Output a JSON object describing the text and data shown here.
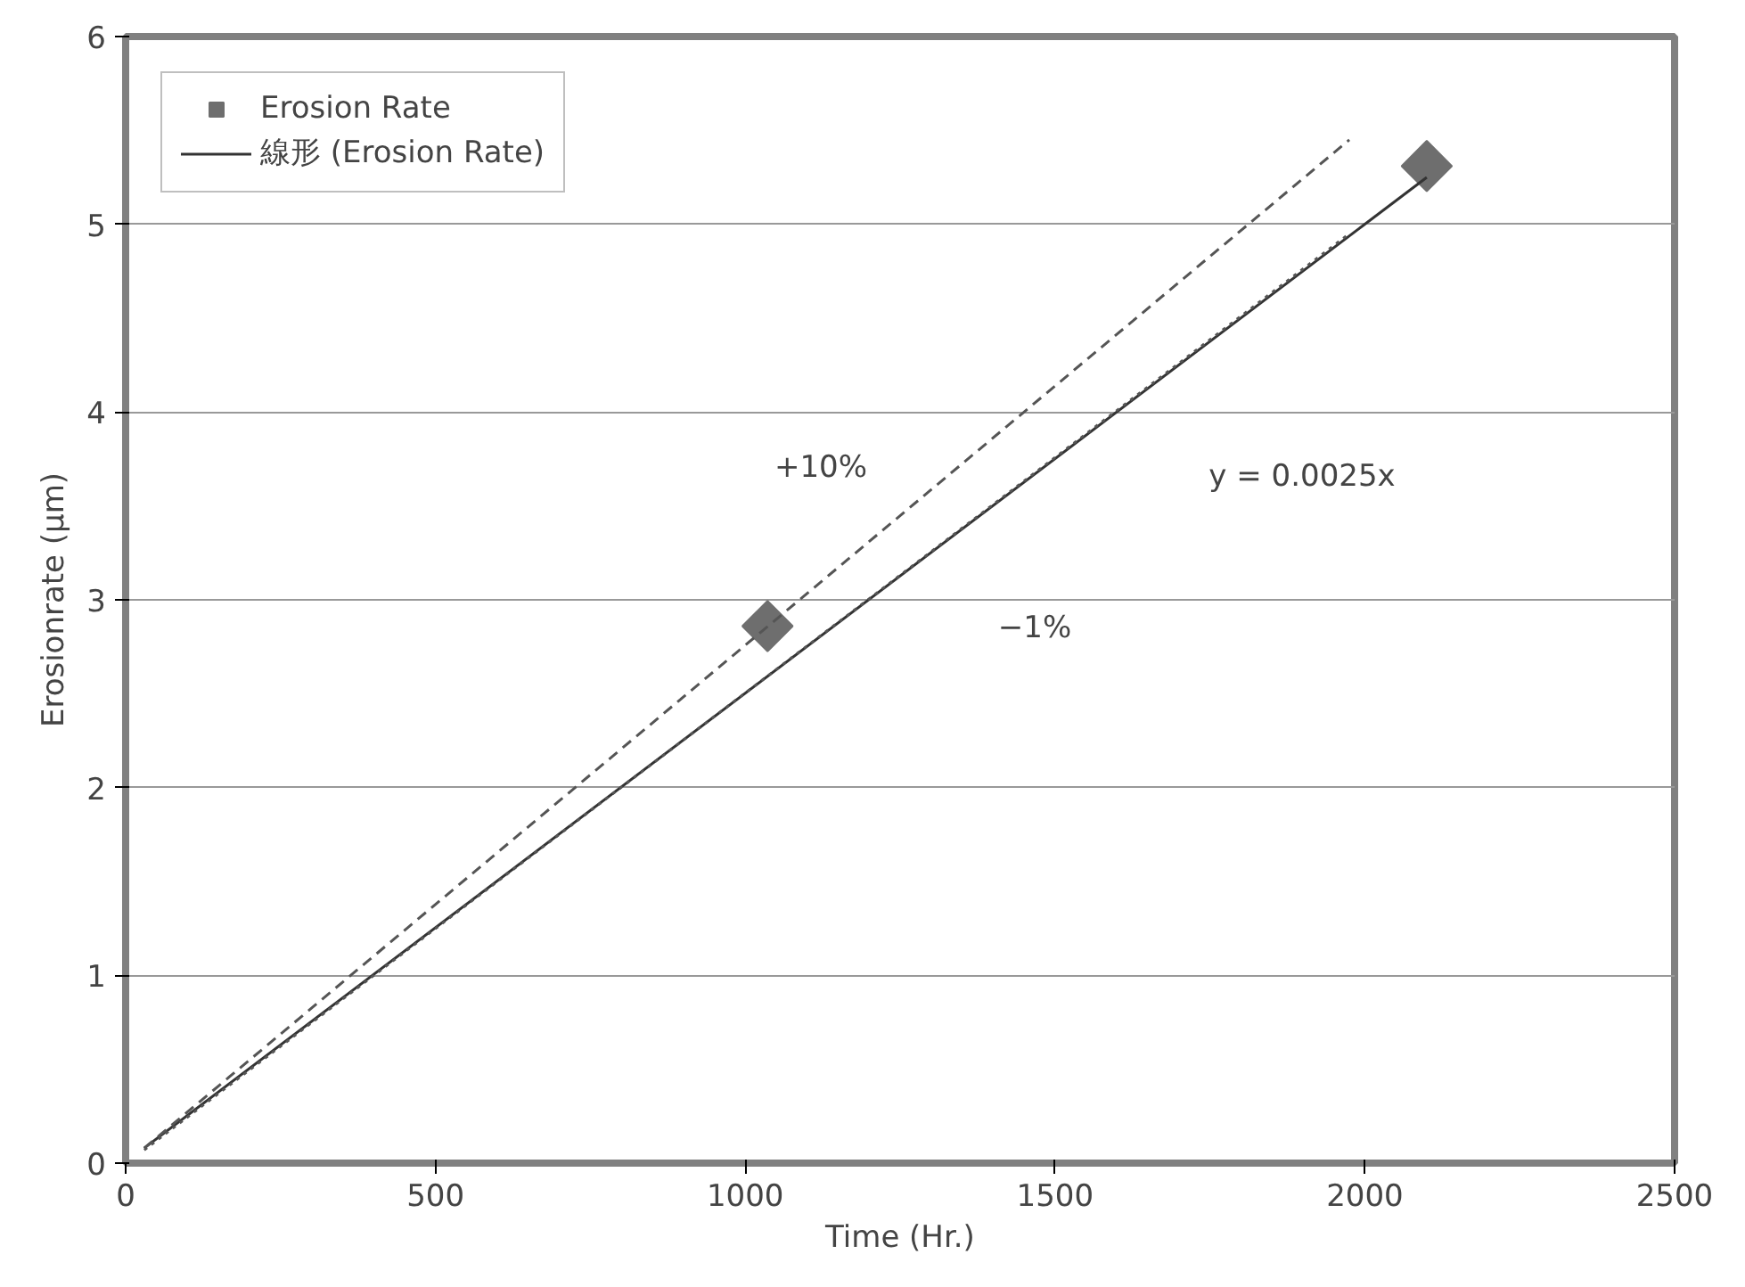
{
  "chart_data": {
    "type": "scatter",
    "xlabel": "Time (Hr.)",
    "ylabel": "Erosionrate (μm)",
    "xlim": [
      0,
      2500
    ],
    "xticks": [
      0,
      500,
      1000,
      1500,
      2000,
      2500
    ],
    "ylim": [
      0,
      6
    ],
    "yticks": [
      0,
      1,
      2,
      3,
      4,
      5,
      6
    ],
    "grid": "y",
    "legend": "top left",
    "marker": "diamond",
    "series": [
      {
        "name": "Erosion Rate",
        "color": "#6e6e6e",
        "x": [
          1036,
          2100
        ],
        "values": [
          2.86,
          5.31
        ]
      },
      {
        "name": "線形 (Erosion Rate)",
        "type": "line",
        "color": "#333333",
        "line_style": "solid",
        "marker": "none",
        "x": [
          30,
          2100
        ],
        "values": [
          0.08,
          5.25
        ]
      },
      {
        "type": "line",
        "color": "#555555",
        "line_style": "dashed",
        "marker": "none",
        "x": [
          30,
          1975
        ],
        "values": [
          0.08,
          5.45
        ]
      },
      {
        "type": "line",
        "color": "#555555",
        "line_style": "dotted",
        "marker": "none",
        "x": [
          30,
          1975
        ],
        "values": [
          0.07,
          4.95
        ]
      }
    ],
    "annotations": [
      "+10%",
      "−1%",
      "y = 0.0025x"
    ]
  }
}
